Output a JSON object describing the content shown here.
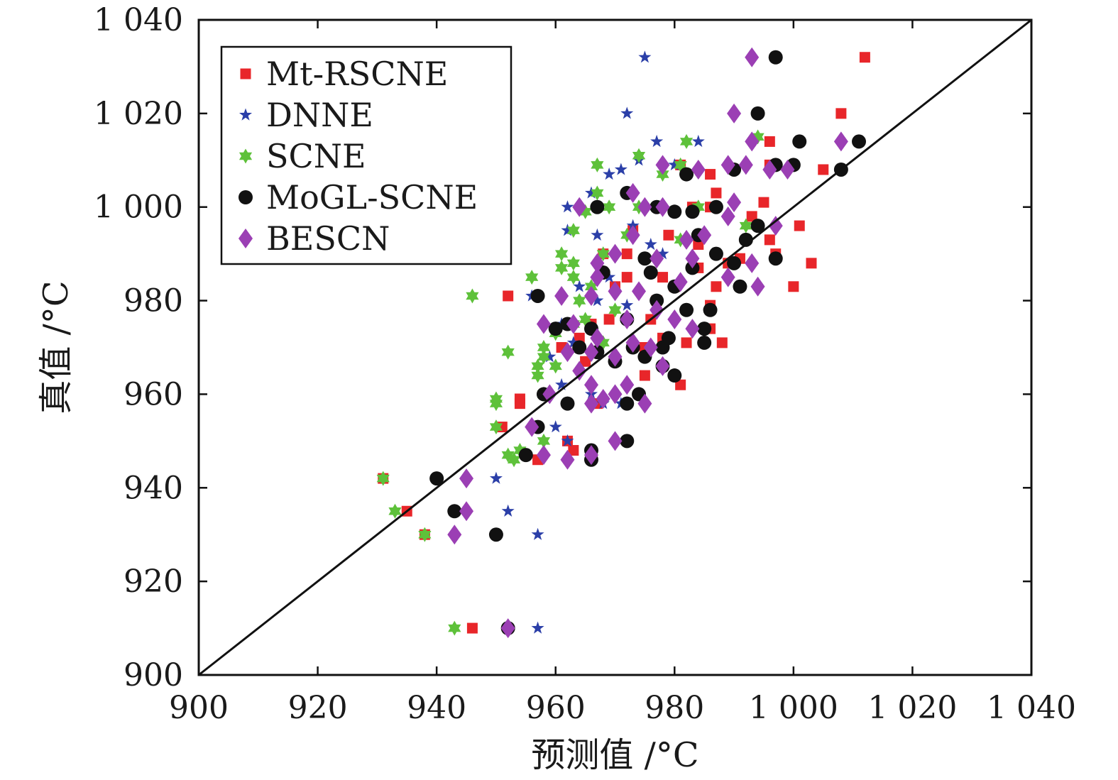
{
  "chart_data": {
    "type": "scatter",
    "title": "",
    "xlabel": "预测值 /°C",
    "ylabel": "真值 /°C",
    "xlim": [
      900,
      1040
    ],
    "ylim": [
      900,
      1040
    ],
    "xticks": [
      900,
      920,
      940,
      960,
      980,
      1000,
      1020,
      1040
    ],
    "yticks": [
      900,
      920,
      940,
      960,
      980,
      1000,
      1020,
      1040
    ],
    "xtick_labels": [
      "900",
      "920",
      "940",
      "960",
      "980",
      "1 000",
      "1 020",
      "1 040"
    ],
    "ytick_labels": [
      "900",
      "920",
      "940",
      "960",
      "980",
      "1 000",
      "1 020",
      "1 040"
    ],
    "grid": false,
    "legend_position": "top-left",
    "reference_line": {
      "from": [
        900,
        900
      ],
      "to": [
        1040,
        1040
      ]
    },
    "series": [
      {
        "name": "Mt-RSCNE",
        "marker": "square",
        "color": "#e8262a",
        "points": [
          [
            1012,
            1032
          ],
          [
            1008,
            1020
          ],
          [
            1005,
            1008
          ],
          [
            1003,
            988
          ],
          [
            1001,
            996
          ],
          [
            1000,
            983
          ],
          [
            997,
            990
          ],
          [
            996,
            993
          ],
          [
            996,
            1009
          ],
          [
            996,
            1014
          ],
          [
            995,
            1001
          ],
          [
            993,
            998
          ],
          [
            991,
            989
          ],
          [
            989,
            988
          ],
          [
            988,
            971
          ],
          [
            987,
            983
          ],
          [
            987,
            1003
          ],
          [
            986,
            1000
          ],
          [
            986,
            1007
          ],
          [
            986,
            979
          ],
          [
            986,
            974
          ],
          [
            984,
            992
          ],
          [
            984,
            987
          ],
          [
            983,
            1000
          ],
          [
            982,
            971
          ],
          [
            981,
            962
          ],
          [
            981,
            1009
          ],
          [
            980,
            983
          ],
          [
            979,
            994
          ],
          [
            978,
            985
          ],
          [
            978,
            972
          ],
          [
            977,
            980
          ],
          [
            976,
            976
          ],
          [
            975,
            964
          ],
          [
            975,
            970
          ],
          [
            973,
            995
          ],
          [
            972,
            990
          ],
          [
            972,
            985
          ],
          [
            970,
            983
          ],
          [
            969,
            976
          ],
          [
            968,
            990
          ],
          [
            967,
            958
          ],
          [
            966,
            975
          ],
          [
            965,
            967
          ],
          [
            964,
            972
          ],
          [
            963,
            948
          ],
          [
            962,
            950
          ],
          [
            961,
            970
          ],
          [
            957,
            946
          ],
          [
            954,
            959
          ],
          [
            954,
            958
          ],
          [
            952,
            981
          ],
          [
            951,
            953
          ],
          [
            946,
            910
          ],
          [
            938,
            930
          ],
          [
            935,
            935
          ],
          [
            931,
            942
          ]
        ]
      },
      {
        "name": "DNNE",
        "marker": "star",
        "color": "#2b3fa8",
        "points": [
          [
            975,
            1032
          ],
          [
            972,
            1020
          ],
          [
            984,
            1014
          ],
          [
            977,
            1014
          ],
          [
            980,
            1009
          ],
          [
            974,
            1010
          ],
          [
            971,
            1008
          ],
          [
            969,
            1007
          ],
          [
            966,
            1003
          ],
          [
            962,
            1000
          ],
          [
            967,
            994
          ],
          [
            973,
            996
          ],
          [
            976,
            992
          ],
          [
            962,
            995
          ],
          [
            978,
            990
          ],
          [
            969,
            985
          ],
          [
            964,
            983
          ],
          [
            956,
            981
          ],
          [
            961,
            975
          ],
          [
            967,
            980
          ],
          [
            972,
            979
          ],
          [
            963,
            971
          ],
          [
            959,
            968
          ],
          [
            961,
            962
          ],
          [
            966,
            960
          ],
          [
            968,
            958
          ],
          [
            971,
            958
          ],
          [
            960,
            953
          ],
          [
            962,
            950
          ],
          [
            957,
            930
          ],
          [
            952,
            935
          ],
          [
            950,
            942
          ],
          [
            957,
            910
          ]
        ]
      },
      {
        "name": "SCNE",
        "marker": "hexagram",
        "color": "#5ec13a",
        "points": [
          [
            994,
            1015
          ],
          [
            982,
            1014
          ],
          [
            981,
            1009
          ],
          [
            974,
            1011
          ],
          [
            967,
            1009
          ],
          [
            978,
            1007
          ],
          [
            967,
            1003
          ],
          [
            969,
            1000
          ],
          [
            974,
            1000
          ],
          [
            965,
            999
          ],
          [
            984,
            1000
          ],
          [
            992,
            996
          ],
          [
            963,
            995
          ],
          [
            972,
            994
          ],
          [
            981,
            993
          ],
          [
            968,
            990
          ],
          [
            961,
            990
          ],
          [
            963,
            988
          ],
          [
            961,
            987
          ],
          [
            963,
            985
          ],
          [
            966,
            983
          ],
          [
            956,
            985
          ],
          [
            946,
            981
          ],
          [
            964,
            980
          ],
          [
            970,
            978
          ],
          [
            965,
            976
          ],
          [
            963,
            975
          ],
          [
            960,
            973
          ],
          [
            968,
            971
          ],
          [
            958,
            970
          ],
          [
            958,
            968
          ],
          [
            960,
            966
          ],
          [
            957,
            966
          ],
          [
            952,
            969
          ],
          [
            957,
            964
          ],
          [
            958,
            960
          ],
          [
            950,
            959
          ],
          [
            950,
            958
          ],
          [
            950,
            953
          ],
          [
            958,
            950
          ],
          [
            954,
            948
          ],
          [
            952,
            947
          ],
          [
            953,
            946
          ],
          [
            938,
            930
          ],
          [
            933,
            935
          ],
          [
            931,
            942
          ],
          [
            943,
            910
          ]
        ]
      },
      {
        "name": "MoGL-SCNE",
        "marker": "circle",
        "color": "#111111",
        "points": [
          [
            997,
            1032
          ],
          [
            994,
            1020
          ],
          [
            1011,
            1014
          ],
          [
            1001,
            1014
          ],
          [
            1008,
            1008
          ],
          [
            1000,
            1009
          ],
          [
            997,
            1009
          ],
          [
            990,
            1008
          ],
          [
            982,
            1007
          ],
          [
            972,
            1003
          ],
          [
            967,
            1000
          ],
          [
            977,
            1000
          ],
          [
            980,
            999
          ],
          [
            983,
            999
          ],
          [
            987,
            1000
          ],
          [
            994,
            996
          ],
          [
            992,
            993
          ],
          [
            984,
            994
          ],
          [
            975,
            989
          ],
          [
            987,
            990
          ],
          [
            990,
            988
          ],
          [
            997,
            989
          ],
          [
            983,
            987
          ],
          [
            976,
            986
          ],
          [
            968,
            986
          ],
          [
            991,
            983
          ],
          [
            980,
            983
          ],
          [
            982,
            978
          ],
          [
            977,
            980
          ],
          [
            986,
            978
          ],
          [
            972,
            976
          ],
          [
            985,
            974
          ],
          [
            979,
            972
          ],
          [
            985,
            971
          ],
          [
            973,
            970
          ],
          [
            978,
            970
          ],
          [
            967,
            969
          ],
          [
            970,
            967
          ],
          [
            975,
            968
          ],
          [
            978,
            966
          ],
          [
            980,
            964
          ],
          [
            974,
            960
          ],
          [
            972,
            958
          ],
          [
            962,
            958
          ],
          [
            958,
            960
          ],
          [
            957,
            981
          ],
          [
            960,
            974
          ],
          [
            962,
            975
          ],
          [
            964,
            970
          ],
          [
            966,
            974
          ],
          [
            957,
            953
          ],
          [
            955,
            947
          ],
          [
            966,
            948
          ],
          [
            966,
            946
          ],
          [
            972,
            950
          ],
          [
            940,
            942
          ],
          [
            943,
            935
          ],
          [
            950,
            930
          ],
          [
            952,
            910
          ]
        ]
      },
      {
        "name": "BESCN",
        "marker": "diamond",
        "color": "#9b3fb4",
        "points": [
          [
            993,
            1032
          ],
          [
            990,
            1020
          ],
          [
            1008,
            1014
          ],
          [
            993,
            1014
          ],
          [
            999,
            1008
          ],
          [
            996,
            1008
          ],
          [
            992,
            1009
          ],
          [
            989,
            1009
          ],
          [
            984,
            1008
          ],
          [
            978,
            1009
          ],
          [
            973,
            1003
          ],
          [
            964,
            1000
          ],
          [
            975,
            1000
          ],
          [
            978,
            1000
          ],
          [
            990,
            1001
          ],
          [
            989,
            998
          ],
          [
            997,
            996
          ],
          [
            985,
            994
          ],
          [
            982,
            993
          ],
          [
            973,
            994
          ],
          [
            967,
            988
          ],
          [
            970,
            990
          ],
          [
            977,
            989
          ],
          [
            983,
            989
          ],
          [
            993,
            988
          ],
          [
            989,
            985
          ],
          [
            994,
            983
          ],
          [
            981,
            984
          ],
          [
            974,
            982
          ],
          [
            970,
            982
          ],
          [
            967,
            985
          ],
          [
            966,
            981
          ],
          [
            961,
            981
          ],
          [
            963,
            975
          ],
          [
            958,
            975
          ],
          [
            972,
            976
          ],
          [
            977,
            978
          ],
          [
            980,
            976
          ],
          [
            983,
            974
          ],
          [
            976,
            970
          ],
          [
            973,
            971
          ],
          [
            970,
            968
          ],
          [
            967,
            972
          ],
          [
            966,
            969
          ],
          [
            962,
            969
          ],
          [
            964,
            965
          ],
          [
            966,
            962
          ],
          [
            968,
            959
          ],
          [
            970,
            960
          ],
          [
            975,
            958
          ],
          [
            978,
            966
          ],
          [
            972,
            962
          ],
          [
            959,
            960
          ],
          [
            966,
            958
          ],
          [
            956,
            953
          ],
          [
            958,
            947
          ],
          [
            962,
            946
          ],
          [
            966,
            947
          ],
          [
            970,
            950
          ],
          [
            945,
            942
          ],
          [
            945,
            935
          ],
          [
            943,
            930
          ],
          [
            952,
            910
          ]
        ]
      }
    ]
  }
}
